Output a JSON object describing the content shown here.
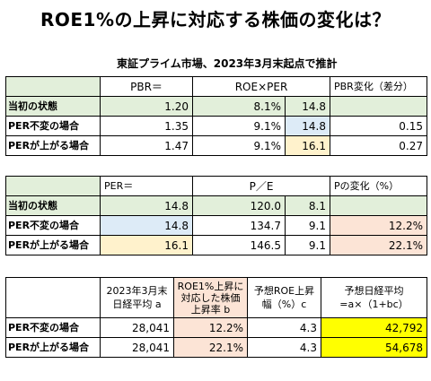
{
  "title": "ROE1%の上昇に対応する株価の変化は？",
  "subtitle": "東証プライム市場、2023年3月末起点で推計",
  "table1": {
    "headers": [
      "",
      "PBR＝",
      "ROE×PER",
      "",
      "PBR変化（差分）"
    ],
    "rows": [
      {
        "label": "当初の状態",
        "pbr": "1.20",
        "roe": "8.1%",
        "per": "14.8",
        "diff": ""
      },
      {
        "label": "PER不変の場合",
        "pbr": "1.35",
        "roe": "9.1%",
        "per": "14.8",
        "diff": "0.15"
      },
      {
        "label": "PERが上がる場合",
        "pbr": "1.47",
        "roe": "9.1%",
        "per": "16.1",
        "diff": "0.27"
      }
    ]
  },
  "table2": {
    "headers": [
      "",
      "PER＝",
      "P／E",
      "",
      "Pの変化（%）"
    ],
    "rows": [
      {
        "label": "当初の状態",
        "per": "14.8",
        "p": "120.0",
        "e": "8.1",
        "chg": ""
      },
      {
        "label": "PER不変の場合",
        "per": "14.8",
        "p": "134.7",
        "e": "9.1",
        "chg": "12.2%"
      },
      {
        "label": "PERが上がる場合",
        "per": "16.1",
        "p": "146.5",
        "e": "9.1",
        "chg": "22.1%"
      }
    ]
  },
  "table3": {
    "headers": [
      "",
      "2023年3月末\n日経平均 a",
      "ROE1%上昇に\n対応した株価\n上昇率 b",
      "予想ROE上昇\n幅（%）c",
      "予想日経平均\n=a×（1+bc）"
    ],
    "rows": [
      {
        "label": "PER不変の場合",
        "a": "28,041",
        "b": "12.2%",
        "c": "4.3",
        "result": "42,792"
      },
      {
        "label": "PERが上がる場合",
        "a": "28,041",
        "b": "22.1%",
        "c": "4.3",
        "result": "54,678"
      }
    ]
  },
  "colors": {
    "header_green": "#e2efda",
    "per_blue": "#ddebf7",
    "change_peach": "#fce4d6",
    "per_amber": "#fff2cc",
    "result_yellow": "#ffff00"
  }
}
